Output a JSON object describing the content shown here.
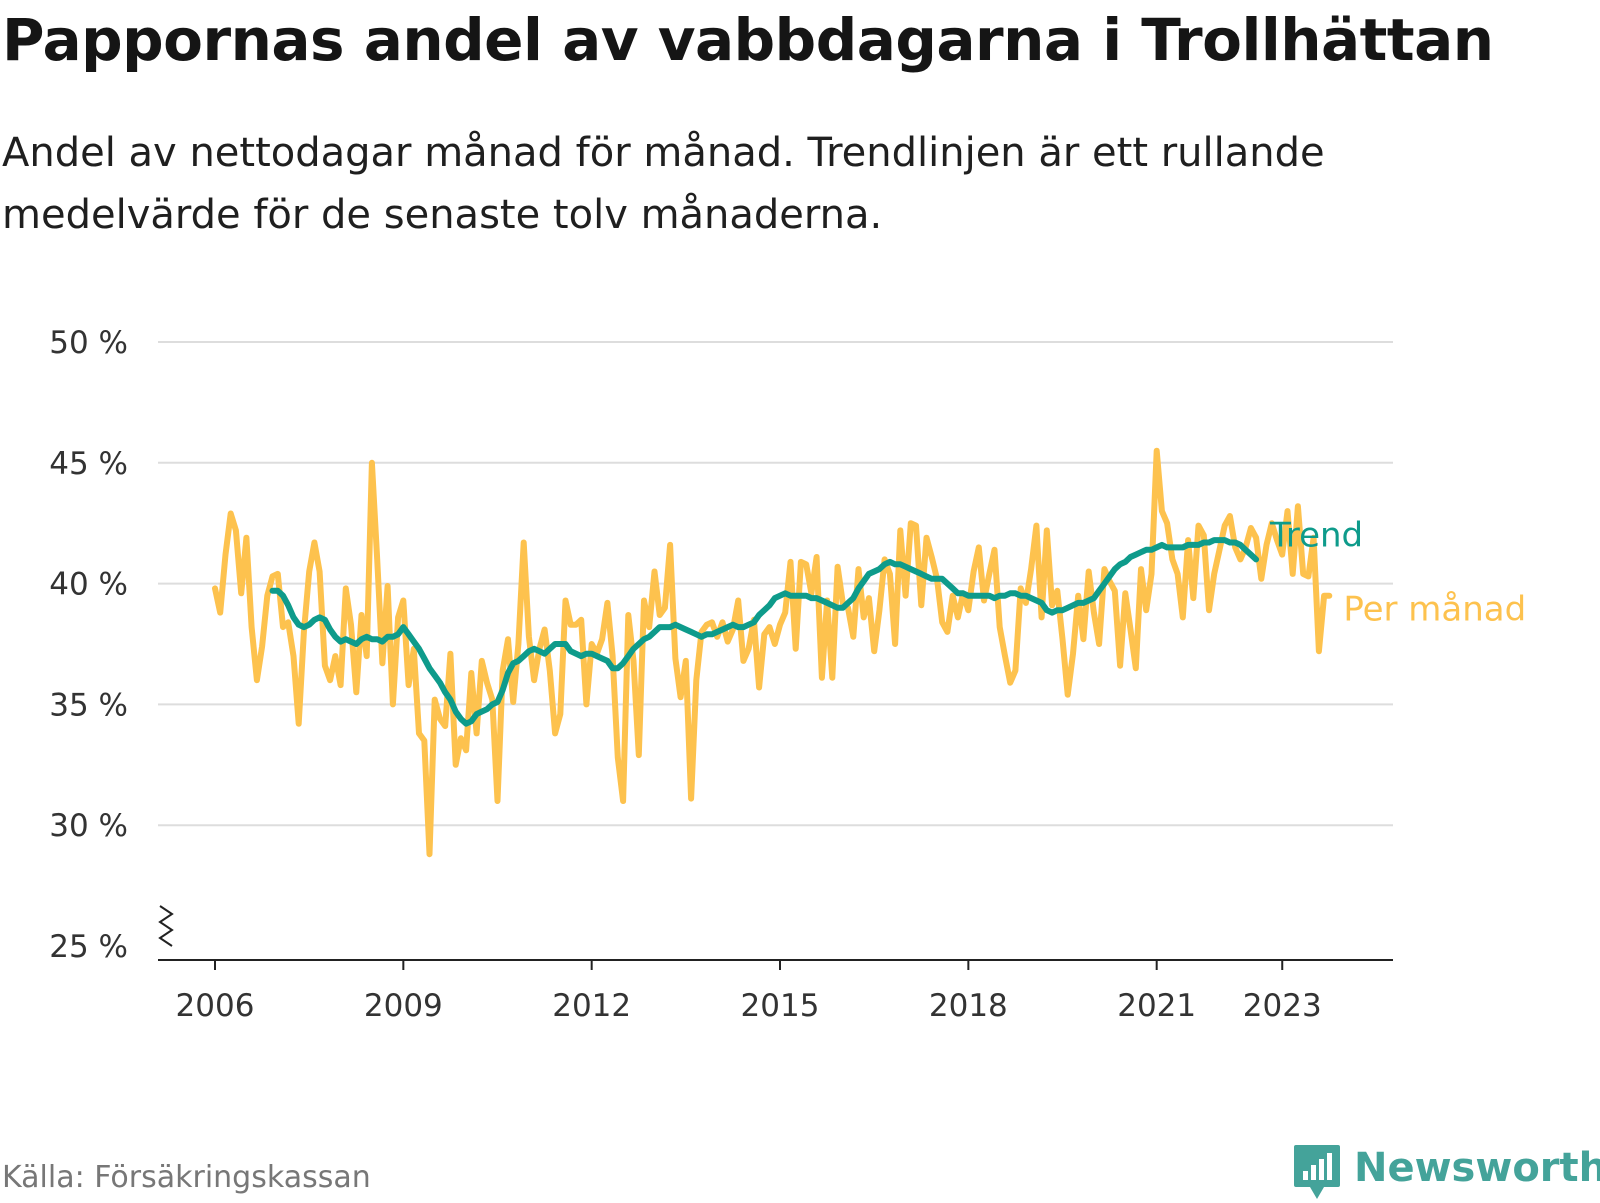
{
  "title": "Pappornas andel av vabbdagarna i Trollhättan",
  "subtitle": "Andel av nettodagar månad för månad. Trendlinjen är ett rullande medelvärde för de senaste tolv månaderna.",
  "source": "Källa: Försäkringskassan",
  "brand": "Newsworthy",
  "colors": {
    "monthly": "#fdc24e",
    "trend": "#0e9b8b",
    "grid": "#dddddd",
    "axis": "#222222",
    "brand": "#44a39a"
  },
  "chart_data": {
    "type": "line",
    "ylim": [
      25,
      50
    ],
    "y_ticks": [
      25,
      30,
      35,
      40,
      45,
      50
    ],
    "y_tick_labels": [
      "25 %",
      "30 %",
      "35 %",
      "40 %",
      "45 %",
      "50 %"
    ],
    "y_axis_break": true,
    "x_range": [
      2006.0,
      2023.92
    ],
    "x_ticks": [
      2006,
      2009,
      2012,
      2015,
      2018,
      2021,
      2023
    ],
    "x_tick_labels": [
      "2006",
      "2009",
      "2012",
      "2015",
      "2018",
      "2021",
      "2023"
    ],
    "grid": "horizontal",
    "legend": "direct labels at line ends",
    "series": [
      {
        "name": "Per månad",
        "x_start": "2006-01",
        "values": [
          39.8,
          38.8,
          41.2,
          42.9,
          42.2,
          39.6,
          41.9,
          38.2,
          36.0,
          37.4,
          39.5,
          40.3,
          40.4,
          38.2,
          38.4,
          37.0,
          34.2,
          38.0,
          40.5,
          41.7,
          40.5,
          36.6,
          36.0,
          37.0,
          35.8,
          39.8,
          38.3,
          35.5,
          38.7,
          37.0,
          45.0,
          41.0,
          36.7,
          39.9,
          35.0,
          38.6,
          39.3,
          35.8,
          37.3,
          33.8,
          33.5,
          28.8,
          35.2,
          34.4,
          34.1,
          37.1,
          32.5,
          33.6,
          33.1,
          36.3,
          33.8,
          36.8,
          35.9,
          35.2,
          31.0,
          36.4,
          37.7,
          35.1,
          37.5,
          41.7,
          37.8,
          36.0,
          37.3,
          38.1,
          36.4,
          33.8,
          34.6,
          39.3,
          38.3,
          38.3,
          38.5,
          35.0,
          37.5,
          37.1,
          37.7,
          39.2,
          37.0,
          32.8,
          31.0,
          38.7,
          36.8,
          32.9,
          39.3,
          38.2,
          40.5,
          38.7,
          39.0,
          41.6,
          36.9,
          35.3,
          36.8,
          31.1,
          36.0,
          38.0,
          38.3,
          38.4,
          37.8,
          38.4,
          37.6,
          38.1,
          39.3,
          36.8,
          37.3,
          38.5,
          35.7,
          37.9,
          38.2,
          37.5,
          38.3,
          38.8,
          40.9,
          37.3,
          40.9,
          40.8,
          39.6,
          41.1,
          36.1,
          39.3,
          36.1,
          40.7,
          39.2,
          39.0,
          37.8,
          40.6,
          38.6,
          39.4,
          37.2,
          38.9,
          41.0,
          40.4,
          37.5,
          42.2,
          39.5,
          42.5,
          42.4,
          39.1,
          41.9,
          41.1,
          40.2,
          38.4,
          38.0,
          39.5,
          38.6,
          39.6,
          38.9,
          40.5,
          41.5,
          39.3,
          40.4,
          41.4,
          38.2,
          37.0,
          35.9,
          36.4,
          39.8,
          39.2,
          40.6,
          42.4,
          38.6,
          42.2,
          39.1,
          39.7,
          37.7,
          35.4,
          37.1,
          39.5,
          37.7,
          40.5,
          38.8,
          37.5,
          40.6,
          40.1,
          39.7,
          36.6,
          39.6,
          38.1,
          36.5,
          40.6,
          38.9,
          40.4,
          45.5,
          43.0,
          42.5,
          41.0,
          40.4,
          38.6,
          41.8,
          39.4,
          42.4,
          42.0,
          38.9,
          40.4,
          41.4,
          42.4,
          42.8,
          41.5,
          41.0,
          41.5,
          42.3,
          41.9,
          40.2,
          41.6,
          42.5,
          41.8,
          41.2,
          43.0,
          40.4,
          43.2,
          40.4,
          40.3,
          41.9,
          37.2,
          39.5,
          39.5
        ]
      },
      {
        "name": "Trend",
        "x_start": "2006-12",
        "values": [
          39.7,
          39.7,
          39.5,
          39.1,
          38.6,
          38.3,
          38.2,
          38.3,
          38.5,
          38.6,
          38.5,
          38.1,
          37.8,
          37.6,
          37.7,
          37.6,
          37.5,
          37.7,
          37.8,
          37.7,
          37.7,
          37.6,
          37.8,
          37.8,
          37.9,
          38.2,
          37.9,
          37.6,
          37.3,
          36.9,
          36.5,
          36.2,
          35.9,
          35.5,
          35.2,
          34.7,
          34.4,
          34.2,
          34.3,
          34.6,
          34.7,
          34.8,
          35.0,
          35.1,
          35.6,
          36.3,
          36.7,
          36.8,
          37.0,
          37.2,
          37.3,
          37.2,
          37.1,
          37.3,
          37.5,
          37.5,
          37.5,
          37.2,
          37.1,
          37.0,
          37.1,
          37.1,
          37.0,
          36.9,
          36.8,
          36.5,
          36.5,
          36.7,
          37.0,
          37.3,
          37.5,
          37.7,
          37.8,
          38.0,
          38.2,
          38.2,
          38.2,
          38.3,
          38.2,
          38.1,
          38.0,
          37.9,
          37.8,
          37.9,
          37.9,
          38.0,
          38.1,
          38.2,
          38.3,
          38.2,
          38.2,
          38.3,
          38.4,
          38.7,
          38.9,
          39.1,
          39.4,
          39.5,
          39.6,
          39.5,
          39.5,
          39.5,
          39.5,
          39.4,
          39.4,
          39.3,
          39.2,
          39.1,
          39.0,
          39.0,
          39.2,
          39.4,
          39.8,
          40.1,
          40.4,
          40.5,
          40.6,
          40.8,
          40.9,
          40.8,
          40.8,
          40.7,
          40.6,
          40.5,
          40.4,
          40.3,
          40.2,
          40.2,
          40.2,
          40.0,
          39.8,
          39.6,
          39.6,
          39.5,
          39.5,
          39.5,
          39.5,
          39.5,
          39.4,
          39.5,
          39.5,
          39.6,
          39.6,
          39.5,
          39.5,
          39.4,
          39.3,
          39.2,
          38.9,
          38.8,
          38.9,
          38.9,
          39.0,
          39.1,
          39.2,
          39.2,
          39.3,
          39.4,
          39.7,
          40.0,
          40.3,
          40.6,
          40.8,
          40.9,
          41.1,
          41.2,
          41.3,
          41.4,
          41.4,
          41.5,
          41.6,
          41.5,
          41.5,
          41.5,
          41.5,
          41.6,
          41.6,
          41.6,
          41.7,
          41.7,
          41.8,
          41.8,
          41.8,
          41.7,
          41.7,
          41.6,
          41.4,
          41.2,
          41.0
        ]
      }
    ]
  }
}
